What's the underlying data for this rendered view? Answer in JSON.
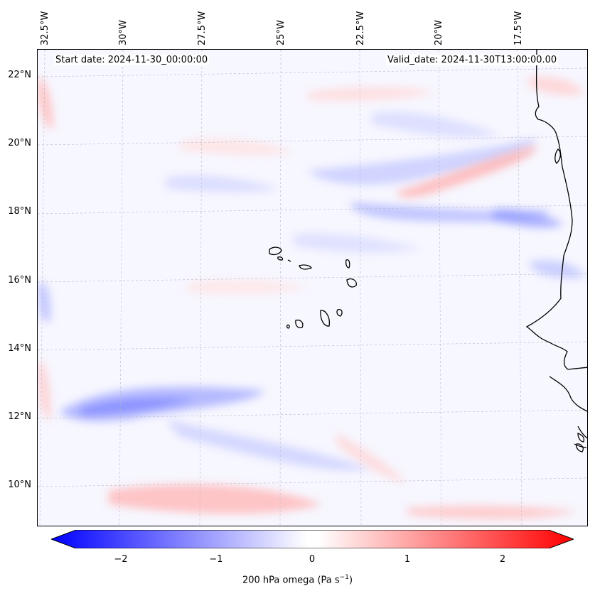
{
  "map": {
    "start_date": "Start date: 2024-11-30_00:00:00",
    "valid_date": "Valid_date: 2024-11-30T13:00:00.00",
    "lon_labels": [
      "32.5°W",
      "30°W",
      "27.5°W",
      "25°W",
      "22.5°W",
      "20°W",
      "17.5°W"
    ],
    "lat_labels": [
      "22°N",
      "20°N",
      "18°N",
      "16°N",
      "14°N",
      "12°N",
      "10°N"
    ],
    "colors": {
      "negative": "#0000ff",
      "positive": "#ff0000",
      "background": "#f7f7ff",
      "coast": "#000000"
    }
  },
  "colorbar": {
    "label": "200 hPa omega (Pa s",
    "label_exp": "−1",
    "label_close": ")",
    "ticks": [
      "−2",
      "−1",
      "0",
      "1",
      "2"
    ]
  }
}
